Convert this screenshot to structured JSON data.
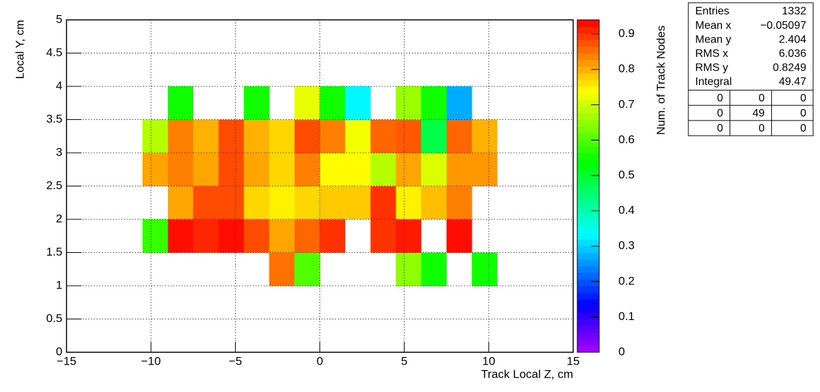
{
  "chart_data": {
    "type": "heatmap",
    "x_label": "Track Local Z, cm",
    "y_label": "Local Y, cm",
    "z_label": "Num. of Track Nodes",
    "colormap": "rainbow",
    "grid": true,
    "xbins": [
      -15,
      -13.5,
      -12,
      -10.5,
      -9,
      -7.5,
      -6,
      -4.5,
      -3,
      -1.5,
      0,
      1.5,
      3,
      4.5,
      6,
      7.5,
      9,
      10.5,
      12,
      13.5,
      15
    ],
    "ybins": [
      0,
      0.5,
      1,
      1.5,
      2,
      2.5,
      3,
      3.5,
      4,
      4.5,
      5
    ],
    "z": [
      [
        null,
        null,
        null,
        null,
        null,
        null,
        null,
        null,
        null,
        null,
        null,
        null,
        null,
        null,
        null,
        null,
        null,
        null,
        null,
        null
      ],
      [
        null,
        null,
        null,
        null,
        null,
        null,
        null,
        null,
        null,
        null,
        null,
        null,
        null,
        null,
        null,
        null,
        null,
        null,
        null,
        null
      ],
      [
        null,
        null,
        null,
        null,
        null,
        null,
        null,
        null,
        0.85,
        0.6,
        null,
        null,
        null,
        0.65,
        0.55,
        null,
        0.55,
        null,
        null,
        null
      ],
      [
        null,
        null,
        null,
        0.58,
        0.93,
        0.91,
        0.93,
        0.88,
        0.81,
        0.86,
        0.9,
        null,
        0.9,
        0.92,
        null,
        0.93,
        null,
        null,
        null,
        null
      ],
      [
        null,
        null,
        null,
        null,
        0.81,
        0.88,
        0.88,
        0.77,
        0.75,
        0.77,
        0.78,
        0.78,
        0.9,
        0.75,
        0.79,
        0.84,
        null,
        null,
        null,
        null
      ],
      [
        null,
        null,
        null,
        0.81,
        0.84,
        0.81,
        0.88,
        0.81,
        0.77,
        0.84,
        0.74,
        0.74,
        0.68,
        0.81,
        0.71,
        0.82,
        0.82,
        null,
        null,
        null
      ],
      [
        null,
        null,
        null,
        0.68,
        0.84,
        0.8,
        0.88,
        0.8,
        0.77,
        0.88,
        0.84,
        0.73,
        0.86,
        0.87,
        0.48,
        0.86,
        0.8,
        null,
        null,
        null
      ],
      [
        null,
        null,
        null,
        null,
        0.55,
        null,
        null,
        0.55,
        null,
        0.72,
        0.55,
        0.33,
        null,
        0.66,
        0.55,
        0.27,
        null,
        null,
        null,
        null
      ],
      [
        null,
        null,
        null,
        null,
        null,
        null,
        null,
        null,
        null,
        null,
        null,
        null,
        null,
        null,
        null,
        null,
        null,
        null,
        null,
        null
      ],
      [
        null,
        null,
        null,
        null,
        null,
        null,
        null,
        null,
        null,
        null,
        null,
        null,
        null,
        null,
        null,
        null,
        null,
        null,
        null,
        null
      ]
    ],
    "xlim": [
      -15,
      15
    ],
    "ylim": [
      0,
      5
    ],
    "zlim": [
      0,
      0.94
    ],
    "xticks": [
      {
        "value": -15,
        "label": "−15"
      },
      {
        "value": -10,
        "label": "−10"
      },
      {
        "value": -5,
        "label": "−5"
      },
      0,
      5,
      10,
      15
    ],
    "yticks": [
      0,
      0.5,
      1,
      1.5,
      2,
      2.5,
      3,
      3.5,
      4,
      4.5,
      5
    ],
    "zticks": [
      0,
      0.1,
      0.2,
      0.3,
      0.4,
      0.5,
      0.6,
      0.7,
      0.8,
      0.9
    ],
    "stats": {
      "rows": [
        [
          "Entries",
          1332
        ],
        [
          "Mean x",
          {
            "value": -0.05097,
            "label": "−0.05097"
          }
        ],
        [
          "Mean y",
          2.404
        ],
        [
          "RMS x",
          6.036
        ],
        [
          "RMS y",
          0.8249
        ],
        [
          "Integral",
          49.47
        ]
      ],
      "grid": [
        [
          0,
          0,
          0
        ],
        [
          0,
          49,
          0
        ],
        [
          0,
          0,
          0
        ]
      ]
    }
  }
}
